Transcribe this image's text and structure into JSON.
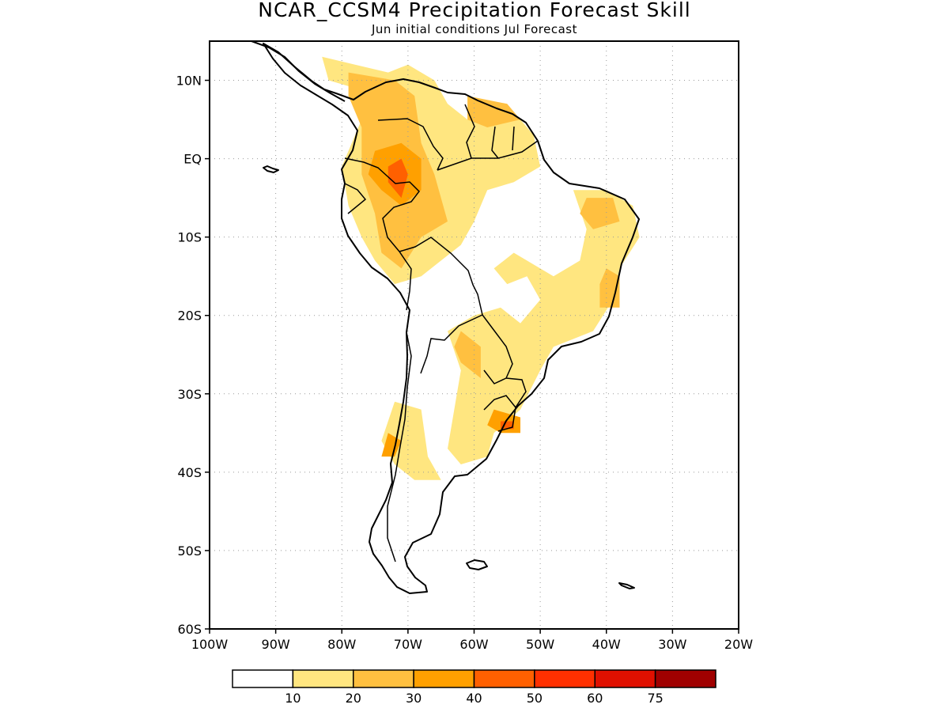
{
  "title": "NCAR_CCSM4 Precipitation Forecast Skill",
  "subtitle": "Jun initial conditions  Jul Forecast",
  "map": {
    "lon_range": [
      -100,
      -20
    ],
    "lat_range": [
      -60,
      15
    ],
    "grid": "dotted",
    "lat_ticks": [
      {
        "value": 10,
        "label": "10N"
      },
      {
        "value": 0,
        "label": "EQ"
      },
      {
        "value": -10,
        "label": "10S"
      },
      {
        "value": -20,
        "label": "20S"
      },
      {
        "value": -30,
        "label": "30S"
      },
      {
        "value": -40,
        "label": "40S"
      },
      {
        "value": -50,
        "label": "50S"
      },
      {
        "value": -60,
        "label": "60S"
      }
    ],
    "lon_ticks": [
      {
        "value": -100,
        "label": "100W"
      },
      {
        "value": -90,
        "label": "90W"
      },
      {
        "value": -80,
        "label": "80W"
      },
      {
        "value": -70,
        "label": "70W"
      },
      {
        "value": -60,
        "label": "60W"
      },
      {
        "value": -50,
        "label": "50W"
      },
      {
        "value": -40,
        "label": "40W"
      },
      {
        "value": -30,
        "label": "30W"
      },
      {
        "value": -20,
        "label": "20W"
      }
    ]
  },
  "colorbar": {
    "colors": [
      "#ffffff",
      "#ffe680",
      "#ffc040",
      "#ffa000",
      "#ff6000",
      "#ff3000",
      "#e01000",
      "#a00000"
    ],
    "labels": [
      "10",
      "20",
      "30",
      "40",
      "50",
      "60",
      "75"
    ]
  },
  "skill_areas": [
    {
      "level": 1,
      "points": [
        [
          -83,
          13
        ],
        [
          -78,
          12
        ],
        [
          -73,
          11
        ],
        [
          -70,
          12
        ],
        [
          -66,
          10
        ],
        [
          -64,
          7
        ],
        [
          -61,
          5
        ],
        [
          -57,
          6
        ],
        [
          -53,
          5
        ],
        [
          -51,
          3
        ],
        [
          -50,
          -1
        ],
        [
          -54,
          -3
        ],
        [
          -58,
          -4
        ],
        [
          -60,
          -8
        ],
        [
          -62,
          -11
        ],
        [
          -65,
          -13
        ],
        [
          -68,
          -15
        ],
        [
          -72,
          -16
        ],
        [
          -75,
          -13
        ],
        [
          -77,
          -10
        ],
        [
          -79,
          -6
        ],
        [
          -80,
          -1
        ],
        [
          -78,
          3
        ],
        [
          -76,
          7
        ],
        [
          -78,
          9
        ],
        [
          -82,
          10
        ]
      ]
    },
    {
      "level": 1,
      "points": [
        [
          -45,
          -4
        ],
        [
          -40,
          -4
        ],
        [
          -36,
          -6
        ],
        [
          -35,
          -10
        ],
        [
          -38,
          -14
        ],
        [
          -39,
          -18
        ],
        [
          -42,
          -22
        ],
        [
          -45,
          -23
        ],
        [
          -48,
          -24
        ],
        [
          -50,
          -27
        ],
        [
          -53,
          -32
        ],
        [
          -57,
          -35
        ],
        [
          -58,
          -38
        ],
        [
          -62,
          -39
        ],
        [
          -64,
          -37
        ],
        [
          -63,
          -32
        ],
        [
          -62,
          -27
        ],
        [
          -64,
          -22
        ],
        [
          -60,
          -20
        ],
        [
          -56,
          -19
        ],
        [
          -53,
          -21
        ],
        [
          -50,
          -18
        ],
        [
          -52,
          -15
        ],
        [
          -55,
          -16
        ],
        [
          -57,
          -14
        ],
        [
          -54,
          -12
        ],
        [
          -48,
          -15
        ],
        [
          -44,
          -13
        ],
        [
          -43,
          -9
        ]
      ]
    },
    {
      "level": 1,
      "points": [
        [
          -72,
          -31
        ],
        [
          -68,
          -32
        ],
        [
          -67,
          -38
        ],
        [
          -65,
          -41
        ],
        [
          -69,
          -41
        ],
        [
          -72,
          -39
        ],
        [
          -74,
          -36
        ]
      ]
    },
    {
      "level": 2,
      "points": [
        [
          -79,
          11
        ],
        [
          -72,
          10
        ],
        [
          -69,
          8
        ],
        [
          -68,
          2
        ],
        [
          -66,
          -2
        ],
        [
          -64,
          -8
        ],
        [
          -68,
          -10
        ],
        [
          -71,
          -14
        ],
        [
          -74,
          -12
        ],
        [
          -75,
          -7
        ],
        [
          -77,
          -2
        ],
        [
          -77,
          4
        ],
        [
          -79,
          8
        ]
      ]
    },
    {
      "level": 2,
      "points": [
        [
          -43,
          -5
        ],
        [
          -39,
          -5
        ],
        [
          -38,
          -8
        ],
        [
          -42,
          -9
        ],
        [
          -44,
          -7
        ]
      ]
    },
    {
      "level": 2,
      "points": [
        [
          -40,
          -14
        ],
        [
          -38,
          -15
        ],
        [
          -38,
          -19
        ],
        [
          -41,
          -19
        ],
        [
          -41,
          -16
        ]
      ]
    },
    {
      "level": 2,
      "points": [
        [
          -61,
          8
        ],
        [
          -55,
          7
        ],
        [
          -53,
          5
        ],
        [
          -58,
          4
        ],
        [
          -61,
          5
        ]
      ]
    },
    {
      "level": 2,
      "points": [
        [
          -62,
          -22
        ],
        [
          -59,
          -24
        ],
        [
          -59,
          -28
        ],
        [
          -62,
          -26
        ],
        [
          -63,
          -24
        ]
      ]
    },
    {
      "level": 3,
      "points": [
        [
          -75,
          1
        ],
        [
          -71,
          2
        ],
        [
          -68,
          0
        ],
        [
          -68,
          -4
        ],
        [
          -71,
          -6
        ],
        [
          -74,
          -4
        ],
        [
          -76,
          -2
        ]
      ]
    },
    {
      "level": 3,
      "points": [
        [
          -57,
          -32
        ],
        [
          -53,
          -33
        ],
        [
          -53,
          -35
        ],
        [
          -56,
          -35
        ],
        [
          -58,
          -34
        ]
      ]
    },
    {
      "level": 3,
      "points": [
        [
          -73,
          -35
        ],
        [
          -71,
          -36
        ],
        [
          -72,
          -38
        ],
        [
          -74,
          -38
        ]
      ]
    },
    {
      "level": 4,
      "points": [
        [
          -73,
          -1
        ],
        [
          -71,
          0
        ],
        [
          -70,
          -2
        ],
        [
          -71,
          -5
        ],
        [
          -73,
          -3
        ]
      ]
    },
    {
      "level": 4,
      "points": [
        [
          -56,
          -33.5
        ],
        [
          -54,
          -33.5
        ],
        [
          -54,
          -34.5
        ],
        [
          -56,
          -34.5
        ]
      ]
    }
  ]
}
